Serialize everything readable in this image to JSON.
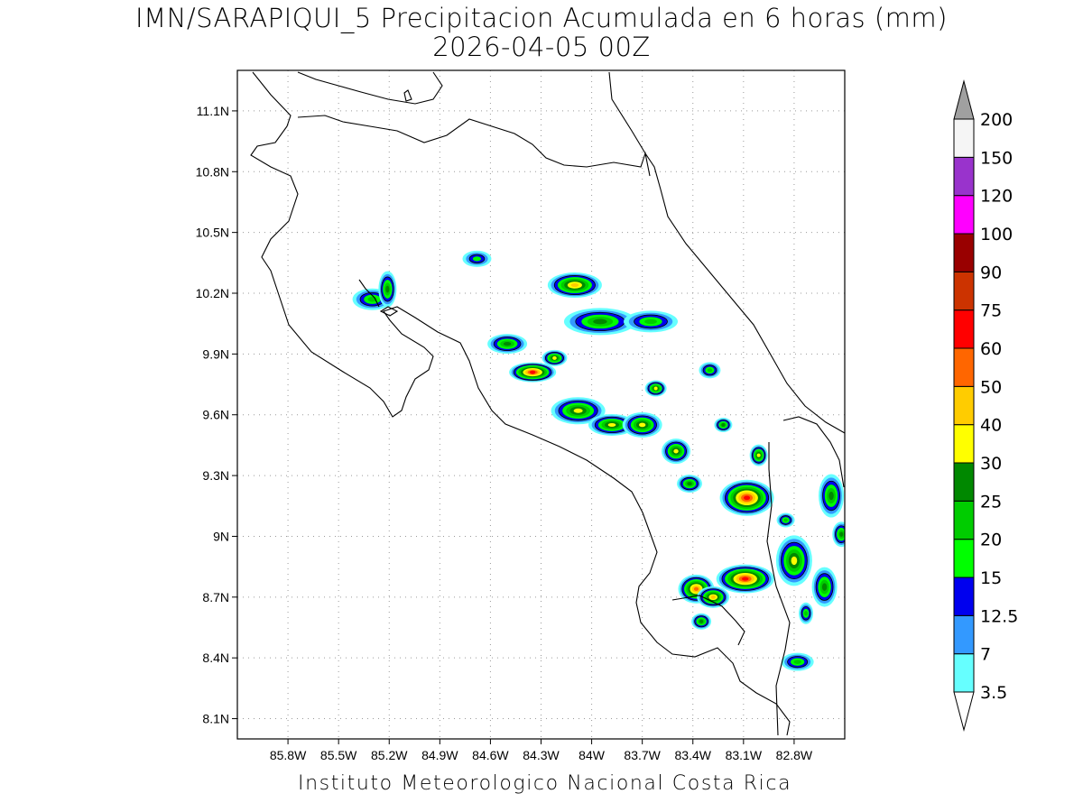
{
  "title_line1": "IMN/SARAPIQUI_5 Precipitacion Acumulada en 6 horas (mm)",
  "title_line2": "2026-04-05 00Z",
  "footer": "Instituto Meteorologico Nacional Costa Rica",
  "map": {
    "lon_range": [
      -86.1,
      -82.5
    ],
    "lat_range": [
      8.0,
      11.3
    ],
    "lon_ticks": [
      {
        "v": -85.8,
        "label": "85.8W"
      },
      {
        "v": -85.5,
        "label": "85.5W"
      },
      {
        "v": -85.2,
        "label": "85.2W"
      },
      {
        "v": -84.9,
        "label": "84.9W"
      },
      {
        "v": -84.6,
        "label": "84.6W"
      },
      {
        "v": -84.3,
        "label": "84.3W"
      },
      {
        "v": -84.0,
        "label": "84W"
      },
      {
        "v": -83.7,
        "label": "83.7W"
      },
      {
        "v": -83.4,
        "label": "83.4W"
      },
      {
        "v": -83.1,
        "label": "83.1W"
      },
      {
        "v": -82.8,
        "label": "82.8W"
      }
    ],
    "lat_ticks": [
      {
        "v": 11.1,
        "label": "11.1N"
      },
      {
        "v": 10.8,
        "label": "10.8N"
      },
      {
        "v": 10.5,
        "label": "10.5N"
      },
      {
        "v": 10.2,
        "label": "10.2N"
      },
      {
        "v": 9.9,
        "label": "9.9N"
      },
      {
        "v": 9.6,
        "label": "9.6N"
      },
      {
        "v": 9.3,
        "label": "9.3N"
      },
      {
        "v": 9.0,
        "label": "9N"
      },
      {
        "v": 8.7,
        "label": "8.7N"
      },
      {
        "v": 8.4,
        "label": "8.4N"
      },
      {
        "v": 8.1,
        "label": "8.1N"
      }
    ]
  },
  "colorbar": {
    "labels": [
      "3.5",
      "7",
      "12.5",
      "15",
      "20",
      "25",
      "30",
      "40",
      "50",
      "60",
      "75",
      "90",
      "100",
      "120",
      "150",
      "200"
    ],
    "colors": [
      "#66ffff",
      "#3399ff",
      "#0000ee",
      "#00ff00",
      "#00cc00",
      "#008800",
      "#ffff00",
      "#ffcc00",
      "#ff6600",
      "#ff0000",
      "#cc3300",
      "#990000",
      "#ff00ff",
      "#9933cc",
      "#f5f5f5",
      "#a0a0a0"
    ]
  },
  "precip_cells": [
    {
      "lon": -85.3,
      "lat": 10.17,
      "rx": 22,
      "ry": 12,
      "level": 4
    },
    {
      "lon": -85.21,
      "lat": 10.22,
      "rx": 10,
      "ry": 20,
      "level": 5
    },
    {
      "lon": -84.68,
      "lat": 10.37,
      "rx": 16,
      "ry": 9,
      "level": 3
    },
    {
      "lon": -84.1,
      "lat": 10.24,
      "rx": 30,
      "ry": 14,
      "level": 7
    },
    {
      "lon": -83.95,
      "lat": 10.06,
      "rx": 40,
      "ry": 15,
      "level": 5
    },
    {
      "lon": -83.65,
      "lat": 10.06,
      "rx": 30,
      "ry": 12,
      "level": 4
    },
    {
      "lon": -84.5,
      "lat": 9.95,
      "rx": 22,
      "ry": 11,
      "level": 5
    },
    {
      "lon": -84.35,
      "lat": 9.81,
      "rx": 26,
      "ry": 11,
      "level": 9
    },
    {
      "lon": -84.22,
      "lat": 9.88,
      "rx": 14,
      "ry": 9,
      "level": 6
    },
    {
      "lon": -84.08,
      "lat": 9.62,
      "rx": 30,
      "ry": 15,
      "level": 6
    },
    {
      "lon": -83.88,
      "lat": 9.55,
      "rx": 26,
      "ry": 12,
      "level": 6
    },
    {
      "lon": -83.7,
      "lat": 9.55,
      "rx": 22,
      "ry": 14,
      "level": 6
    },
    {
      "lon": -83.62,
      "lat": 9.73,
      "rx": 12,
      "ry": 9,
      "level": 6
    },
    {
      "lon": -83.5,
      "lat": 9.42,
      "rx": 16,
      "ry": 14,
      "level": 6
    },
    {
      "lon": -83.42,
      "lat": 9.26,
      "rx": 14,
      "ry": 10,
      "level": 5
    },
    {
      "lon": -83.08,
      "lat": 9.19,
      "rx": 30,
      "ry": 20,
      "level": 9
    },
    {
      "lon": -83.01,
      "lat": 9.4,
      "rx": 10,
      "ry": 12,
      "level": 6
    },
    {
      "lon": -83.22,
      "lat": 9.55,
      "rx": 10,
      "ry": 8,
      "level": 5
    },
    {
      "lon": -83.3,
      "lat": 9.82,
      "rx": 12,
      "ry": 9,
      "level": 4
    },
    {
      "lon": -83.38,
      "lat": 8.74,
      "rx": 20,
      "ry": 16,
      "level": 8
    },
    {
      "lon": -83.28,
      "lat": 8.7,
      "rx": 18,
      "ry": 12,
      "level": 7
    },
    {
      "lon": -83.09,
      "lat": 8.79,
      "rx": 32,
      "ry": 16,
      "level": 9
    },
    {
      "lon": -82.8,
      "lat": 8.88,
      "rx": 20,
      "ry": 28,
      "level": 6
    },
    {
      "lon": -82.62,
      "lat": 8.75,
      "rx": 14,
      "ry": 22,
      "level": 5
    },
    {
      "lon": -82.58,
      "lat": 9.2,
      "rx": 14,
      "ry": 24,
      "level": 5
    },
    {
      "lon": -82.52,
      "lat": 9.01,
      "rx": 10,
      "ry": 14,
      "level": 5
    },
    {
      "lon": -83.35,
      "lat": 8.58,
      "rx": 11,
      "ry": 9,
      "level": 5
    },
    {
      "lon": -82.78,
      "lat": 8.38,
      "rx": 18,
      "ry": 10,
      "level": 4
    },
    {
      "lon": -82.85,
      "lat": 9.08,
      "rx": 10,
      "ry": 8,
      "level": 4
    },
    {
      "lon": -82.73,
      "lat": 8.62,
      "rx": 8,
      "ry": 12,
      "level": 4
    }
  ]
}
